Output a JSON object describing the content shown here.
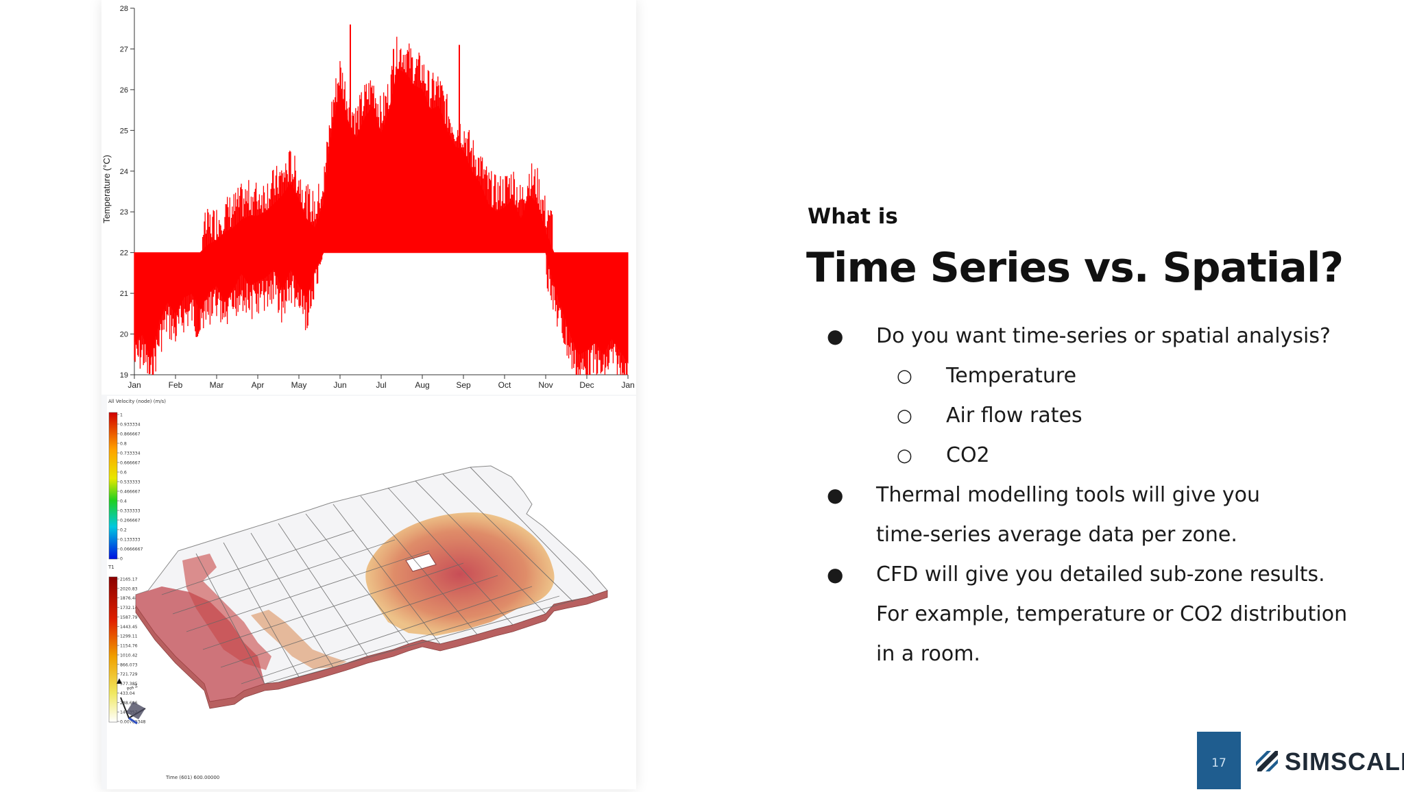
{
  "slide": {
    "kicker": "What is",
    "title": "Time Series vs. Spatial?",
    "bullets": [
      {
        "level": 1,
        "marker": "●",
        "text": "Do you want time-series or spatial analysis?"
      },
      {
        "level": 2,
        "marker": "○",
        "text": "Temperature"
      },
      {
        "level": 2,
        "marker": "○",
        "text": "Air flow rates"
      },
      {
        "level": 2,
        "marker": "○",
        "text": "CO2"
      },
      {
        "level": 1,
        "marker": "●",
        "text": "Thermal modelling tools will give you"
      },
      {
        "level": 1,
        "marker": "",
        "text": "time-series average data per zone."
      },
      {
        "level": 1,
        "marker": "●",
        "text": "CFD will give you detailed sub-zone results."
      },
      {
        "level": 1,
        "marker": "",
        "text": "For example, temperature or CO2 distribution"
      },
      {
        "level": 1,
        "marker": "",
        "text": "in a room."
      }
    ],
    "page_number": "17",
    "logo_text": "SIMSCALE",
    "colors": {
      "brand": "#1f5d8f",
      "series": "#ff0000"
    }
  },
  "chart_data": {
    "type": "area",
    "title": "",
    "xlabel": "",
    "ylabel": "Temperature (°C)",
    "ylim": [
      19,
      28
    ],
    "yticks": [
      "19",
      "20",
      "21",
      "22",
      "23",
      "24",
      "25",
      "26",
      "27",
      "28"
    ],
    "xticks": [
      "Jan",
      "Feb",
      "Mar",
      "Apr",
      "May",
      "Jun",
      "Jul",
      "Aug",
      "Sep",
      "Oct",
      "Nov",
      "Dec",
      "Jan"
    ],
    "baseline": 22,
    "series": [
      {
        "color": "#ff0000",
        "x_month": [
          0,
          0.2,
          0.4,
          0.6,
          0.8,
          1.0,
          1.2,
          1.4,
          1.6,
          1.8,
          2.0,
          2.2,
          2.4,
          2.6,
          2.8,
          3.0,
          3.2,
          3.4,
          3.6,
          3.8,
          4.0,
          4.2,
          4.4,
          4.6,
          4.8,
          5.0,
          5.2,
          5.4,
          5.6,
          5.8,
          6.0,
          6.2,
          6.4,
          6.6,
          6.8,
          7.0,
          7.2,
          7.4,
          7.6,
          7.8,
          8.0,
          8.2,
          8.4,
          8.6,
          8.8,
          9.0,
          9.2,
          9.4,
          9.6,
          9.8,
          10.0,
          10.2,
          10.4,
          10.6,
          10.8,
          11.0,
          11.2,
          11.4,
          11.6,
          11.8,
          12.0
        ],
        "high": [
          22.0,
          22.0,
          22.0,
          22.0,
          22.0,
          22.0,
          22.0,
          22.0,
          22.0,
          22.2,
          22.3,
          22.5,
          22.6,
          22.8,
          22.9,
          22.9,
          23.0,
          23.2,
          23.4,
          23.7,
          23.3,
          22.8,
          22.6,
          23.2,
          25.0,
          26.0,
          25.2,
          24.8,
          25.3,
          25.6,
          24.9,
          25.5,
          26.5,
          26.4,
          26.1,
          26.0,
          25.5,
          25.6,
          25.0,
          24.6,
          24.5,
          24.0,
          23.7,
          23.2,
          23.0,
          23.1,
          23.3,
          22.8,
          23.4,
          23.2,
          22.5,
          22.0,
          22.0,
          22.0,
          22.0,
          22.0,
          22.0,
          22.0,
          22.0,
          22.0,
          22.0
        ],
        "low": [
          19.8,
          20.0,
          19.4,
          20.3,
          20.8,
          20.5,
          20.9,
          21.0,
          20.6,
          21.0,
          21.2,
          20.8,
          21.1,
          21.5,
          21.2,
          21.3,
          21.4,
          21.6,
          21.1,
          21.6,
          21.2,
          20.9,
          21.6,
          22.0,
          22.0,
          22.0,
          22.0,
          22.0,
          22.0,
          22.0,
          22.0,
          22.0,
          22.0,
          22.0,
          22.0,
          22.0,
          22.0,
          22.0,
          22.0,
          22.0,
          22.0,
          22.0,
          22.0,
          22.0,
          22.0,
          22.0,
          22.0,
          22.0,
          22.0,
          22.0,
          22.0,
          21.2,
          20.6,
          20.0,
          19.5,
          19.6,
          19.8,
          19.5,
          19.9,
          19.6,
          19.3
        ]
      }
    ],
    "peaks": [
      {
        "x_month": 5.25,
        "y": 27.6
      },
      {
        "x_month": 7.9,
        "y": 27.1
      },
      {
        "x_month": 6.3,
        "y": 27.0
      }
    ]
  },
  "cfd_legend": {
    "velocity_title": "All Velocity (node) (m/s)",
    "velocity_values": [
      "1",
      "0.933334",
      "0.866667",
      "0.8",
      "0.733334",
      "0.666667",
      "0.6",
      "0.533333",
      "0.466667",
      "0.4",
      "0.333333",
      "0.266667",
      "0.2",
      "0.133333",
      "0.0666667",
      "0"
    ],
    "temp_title": "T1",
    "temp_values": [
      "2165.17",
      "2020.83",
      "1876.48",
      "1732.14",
      "1587.79",
      "1443.45",
      "1299.11",
      "1154.76",
      "1010.42",
      "866.073",
      "721.729",
      "577.385",
      "433.04",
      "288.696",
      "144.352",
      "0.00789348"
    ],
    "time_label": "Time (601) 600.00000",
    "axis_label": "Pos Z"
  }
}
